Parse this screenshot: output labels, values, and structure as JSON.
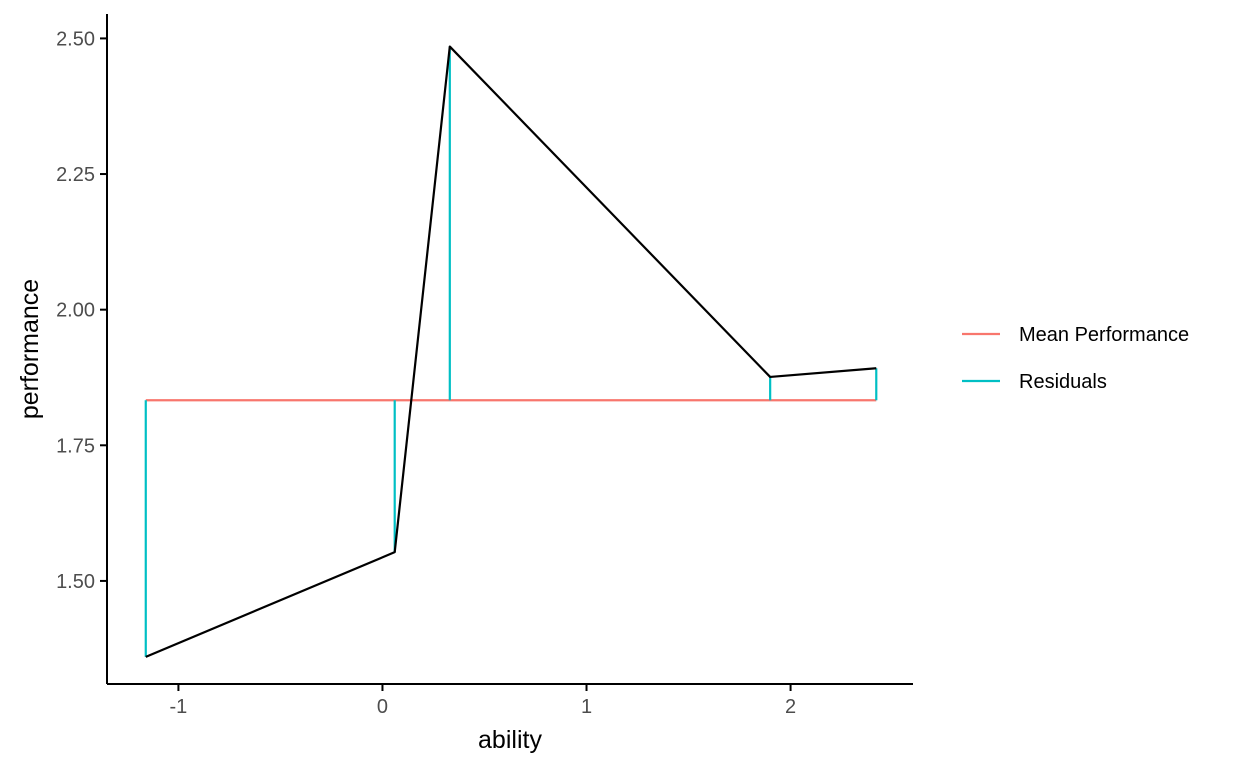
{
  "chart_data": {
    "type": "line",
    "title": "",
    "xlabel": "ability",
    "ylabel": "performance",
    "xlim": [
      -1.35,
      2.6
    ],
    "ylim": [
      1.31,
      2.545
    ],
    "x_ticks": [
      -1,
      0,
      1,
      2
    ],
    "x_tick_labels": [
      "-1",
      "0",
      "1",
      "2"
    ],
    "y_ticks": [
      1.5,
      1.75,
      2.0,
      2.25,
      2.5
    ],
    "y_tick_labels": [
      "1.50",
      "1.75",
      "2.00",
      "2.25",
      "2.50"
    ],
    "grid": false,
    "legend_position": "right",
    "mean_value": 1.833,
    "series": [
      {
        "role": "observed",
        "color": "#000000",
        "x": [
          -1.16,
          0.06,
          0.33,
          1.9,
          2.42
        ],
        "y": [
          1.36,
          1.553,
          2.485,
          1.876,
          1.892
        ]
      },
      {
        "name": "Mean Performance",
        "color": "#F8766D",
        "x": [
          -1.16,
          2.42
        ],
        "y": [
          1.833,
          1.833
        ]
      },
      {
        "name": "Residuals",
        "color": "#00BFC4",
        "x": [
          -1.16,
          0.06,
          0.33,
          1.9,
          2.42
        ],
        "y_from": [
          1.833,
          1.833,
          1.833,
          1.833,
          1.833
        ],
        "y_to": [
          1.36,
          1.553,
          2.485,
          1.876,
          1.892
        ]
      }
    ],
    "legend": [
      {
        "label": "Mean Performance",
        "color": "#F8766D"
      },
      {
        "label": "Residuals",
        "color": "#00BFC4"
      }
    ]
  }
}
